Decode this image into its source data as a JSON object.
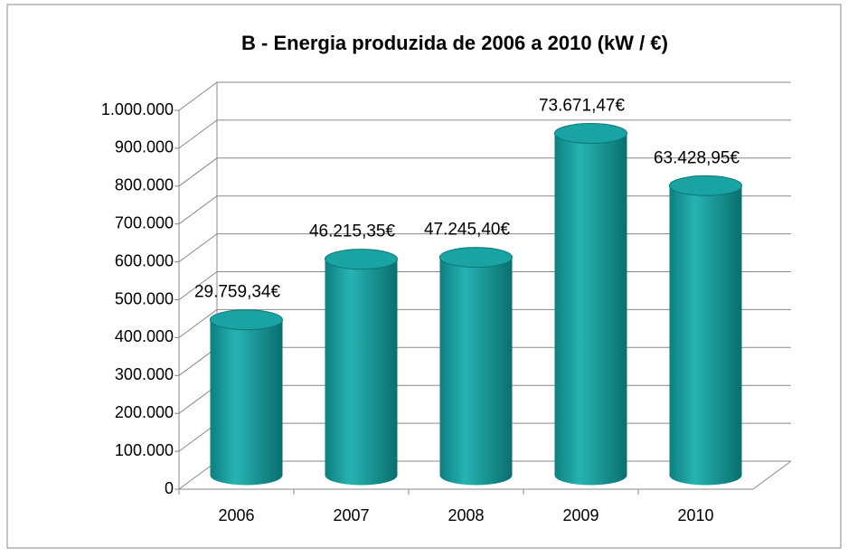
{
  "chart_data": {
    "type": "bar3d",
    "title": "B - Energia produzida de 2006 a 2010  (kW / €)",
    "categories": [
      "2006",
      "2007",
      "2008",
      "2009",
      "2010"
    ],
    "values": [
      410000,
      570000,
      575000,
      902000,
      764000
    ],
    "annotations": [
      "29.759,34€",
      "46.215,35€",
      "47.245,40€",
      "73.671,47€",
      "63.428,95€"
    ],
    "color": "#1a9e9e",
    "ylim": [
      0,
      1000000
    ],
    "yticks": [
      0,
      {
        "value": 100000,
        "label": "100.000"
      },
      {
        "value": 200000,
        "label": "200.000"
      },
      {
        "value": 300000,
        "label": "300.000"
      },
      {
        "value": 400000,
        "label": "400.000"
      },
      {
        "value": 500000,
        "label": "500.000"
      },
      {
        "value": 600000,
        "label": "600.000"
      },
      {
        "value": 700000,
        "label": "700.000"
      },
      {
        "value": 800000,
        "label": "800.000"
      },
      {
        "value": 900000,
        "label": "900.000"
      },
      {
        "value": 1000000,
        "label": "1.000.000"
      }
    ],
    "grid": true
  }
}
